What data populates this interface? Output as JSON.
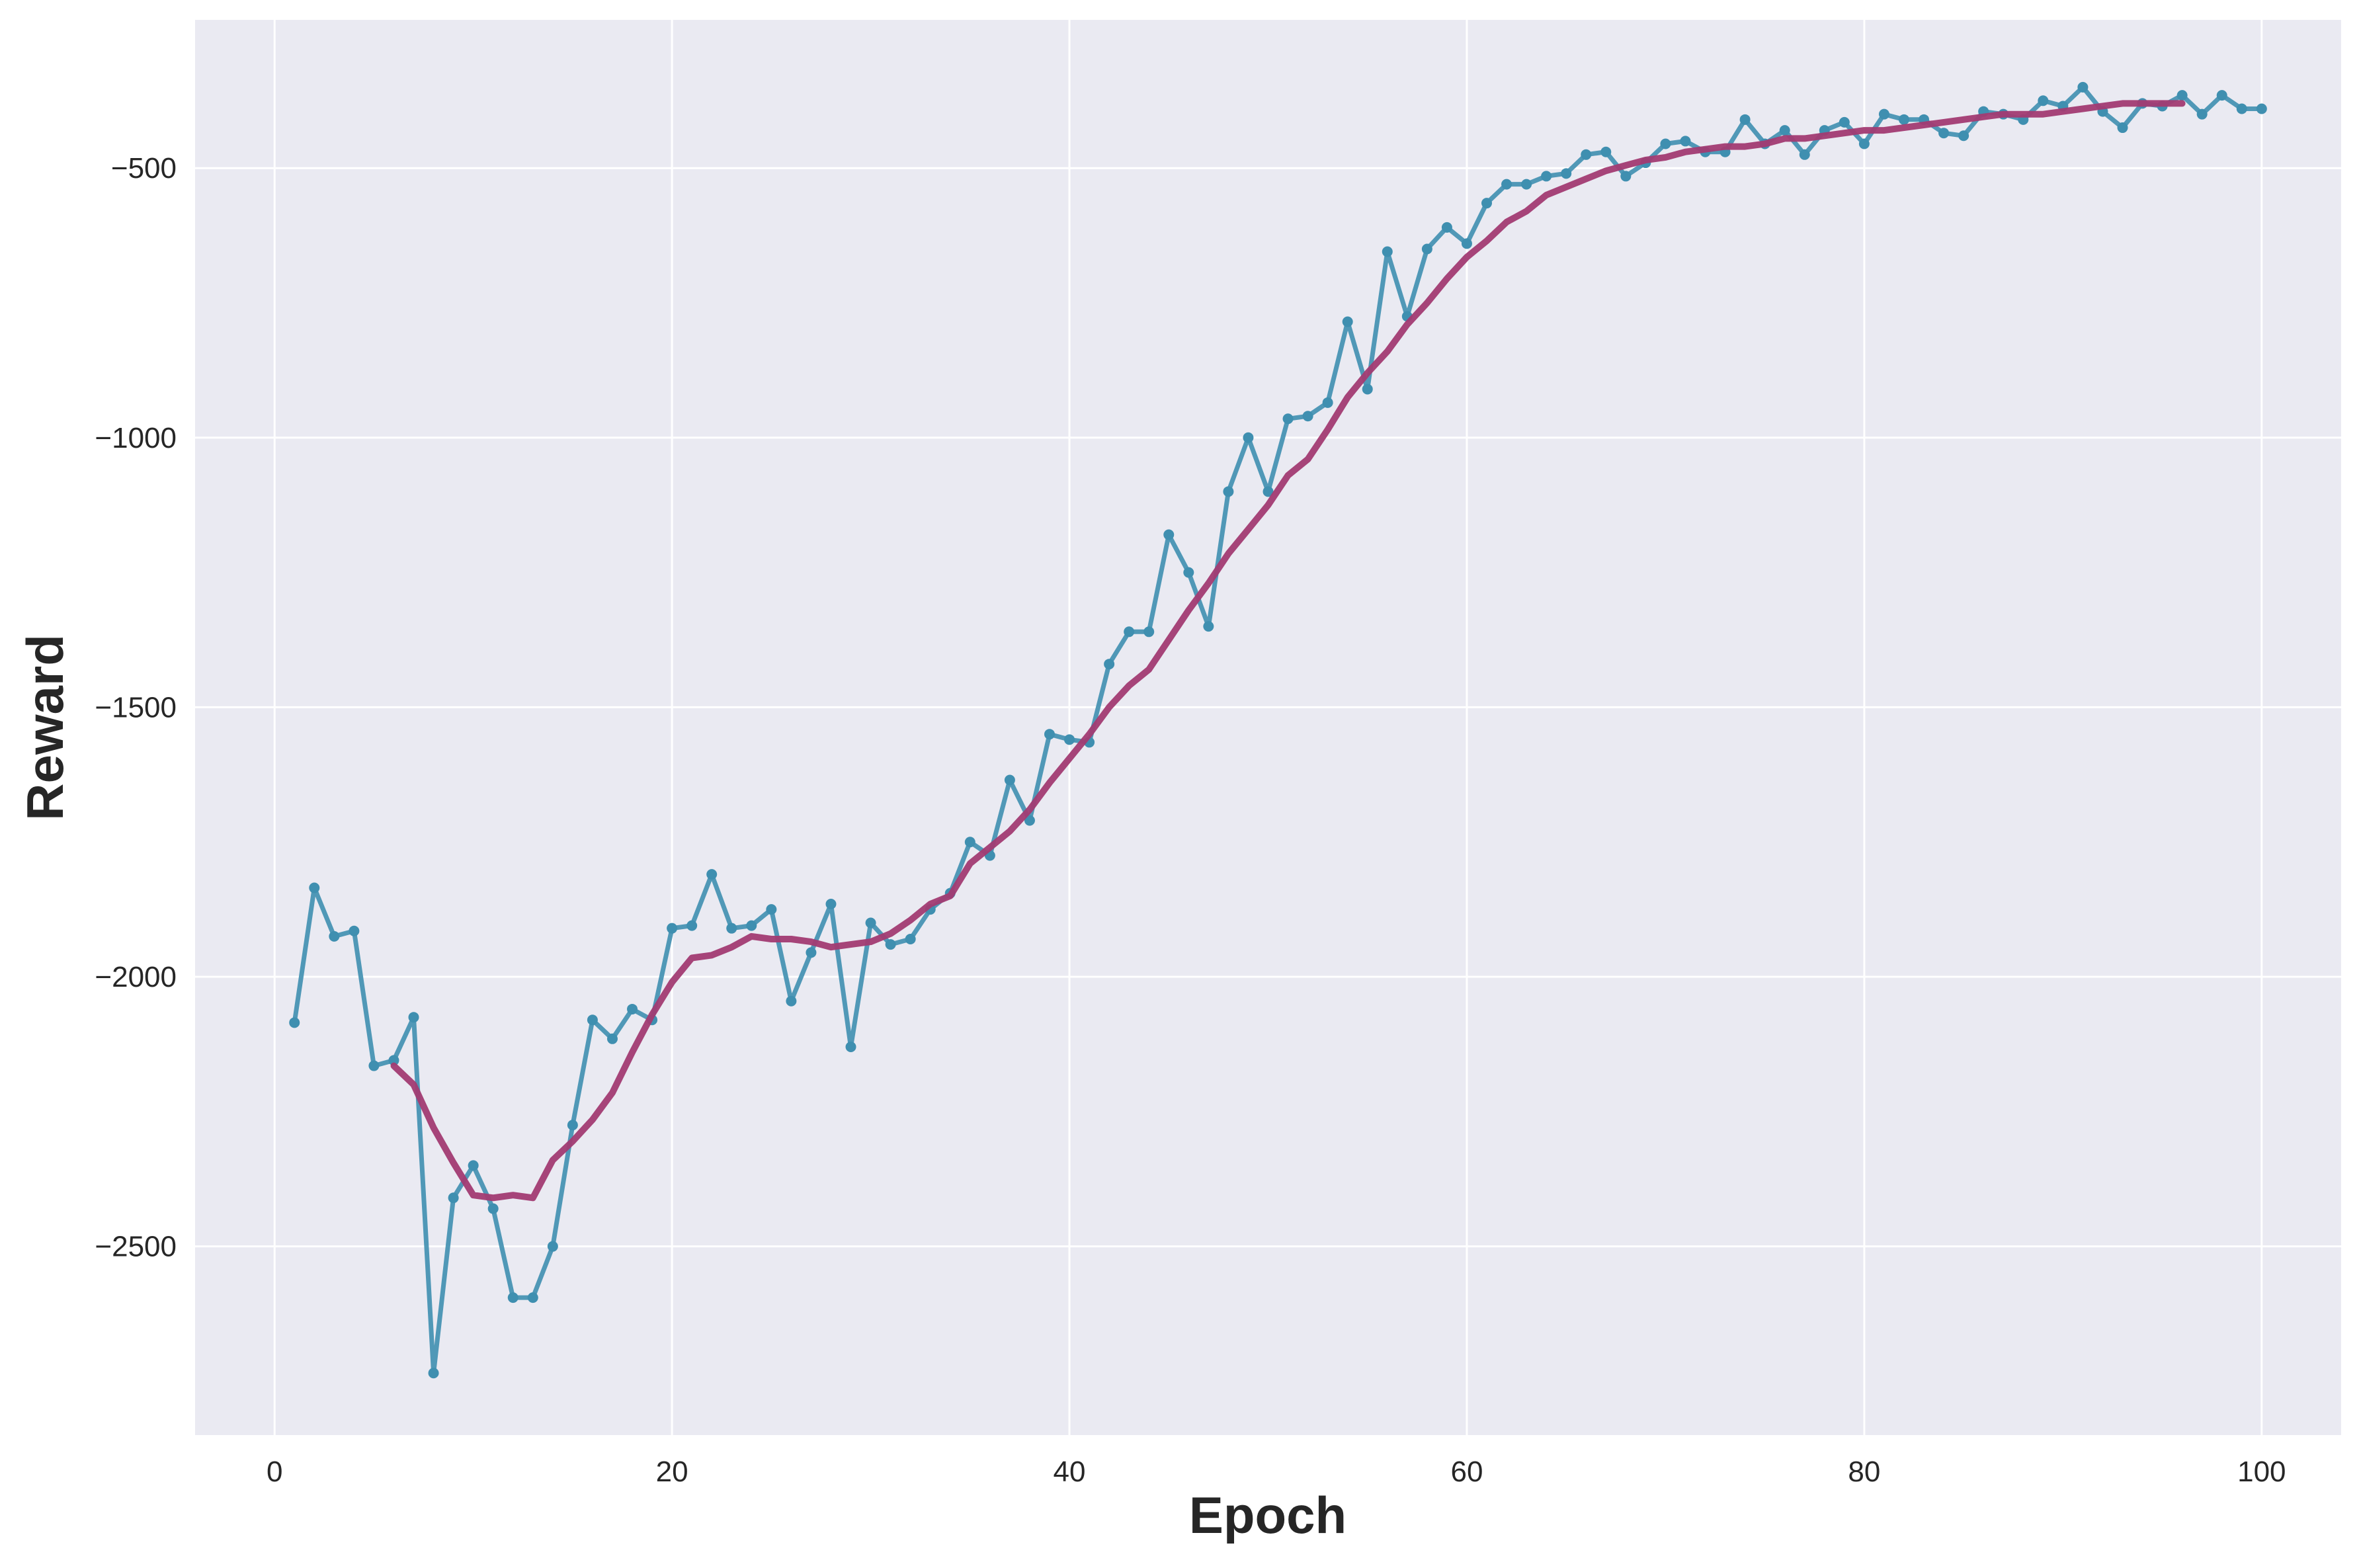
{
  "chart_data": {
    "type": "line",
    "title": "",
    "xlabel": "Epoch",
    "ylabel": "Reward",
    "xlim": [
      -4,
      104
    ],
    "ylim": [
      -2850,
      -225
    ],
    "xticks": [
      0,
      20,
      40,
      60,
      80,
      100
    ],
    "yticks": [
      -2500,
      -2000,
      -1500,
      -1000,
      -500
    ],
    "xtick_labels": [
      "0",
      "20",
      "40",
      "60",
      "80",
      "100"
    ],
    "ytick_labels": [
      "−2500",
      "−2000",
      "−1500",
      "−1000",
      "−500"
    ],
    "grid": true,
    "legend": "none",
    "colors": {
      "background": "#eaeaf2",
      "grid": "#ffffff",
      "raw": "#3f8fb0",
      "smoothed": "#a23b72"
    },
    "series": [
      {
        "x": [
          1,
          2,
          3,
          4,
          5,
          6,
          7,
          8,
          9,
          10,
          11,
          12,
          13,
          14,
          15,
          16,
          17,
          18,
          19,
          20,
          21,
          22,
          23,
          24,
          25,
          26,
          27,
          28,
          29,
          30,
          31,
          32,
          33,
          34,
          35,
          36,
          37,
          38,
          39,
          40,
          41,
          42,
          43,
          44,
          45,
          46,
          47,
          48,
          49,
          50,
          51,
          52,
          53,
          54,
          55,
          56,
          57,
          58,
          59,
          60,
          61,
          62,
          63,
          64,
          65,
          66,
          67,
          68,
          69,
          70,
          71,
          72,
          73,
          74,
          75,
          76,
          77,
          78,
          79,
          80,
          81,
          82,
          83,
          84,
          85,
          86,
          87,
          88,
          89,
          90,
          91,
          92,
          93,
          94,
          95,
          96,
          97,
          98,
          99,
          100
        ],
        "values": [
          -2085,
          -1835,
          -1925,
          -1915,
          -2165,
          -2155,
          -2075,
          -2735,
          -2410,
          -2350,
          -2430,
          -2595,
          -2595,
          -2500,
          -2275,
          -2080,
          -2115,
          -2060,
          -2080,
          -1910,
          -1905,
          -1810,
          -1910,
          -1905,
          -1875,
          -2045,
          -1955,
          -1865,
          -2130,
          -1900,
          -1940,
          -1930,
          -1875,
          -1845,
          -1750,
          -1775,
          -1635,
          -1710,
          -1550,
          -1560,
          -1565,
          -1420,
          -1360,
          -1360,
          -1180,
          -1250,
          -1350,
          -1100,
          -1000,
          -1100,
          -965,
          -960,
          -935,
          -785,
          -910,
          -655,
          -775,
          -650,
          -610,
          -640,
          -565,
          -530,
          -530,
          -515,
          -510,
          -475,
          -470,
          -515,
          -490,
          -455,
          -450,
          -470,
          -470,
          -410,
          -455,
          -430,
          -475,
          -430,
          -415,
          -455,
          -400,
          -410,
          -410,
          -435,
          -440,
          -395,
          -400,
          -410,
          -375,
          -385,
          -350,
          -395,
          -425,
          -380,
          -385,
          -365,
          -400,
          -365,
          -390,
          -390
        ]
      },
      {
        "x": [
          6,
          7,
          8,
          9,
          10,
          11,
          12,
          13,
          14,
          15,
          16,
          17,
          18,
          19,
          20,
          21,
          22,
          23,
          24,
          25,
          26,
          27,
          28,
          29,
          30,
          31,
          32,
          33,
          34,
          35,
          36,
          37,
          38,
          39,
          40,
          41,
          42,
          43,
          44,
          45,
          46,
          47,
          48,
          49,
          50,
          51,
          52,
          53,
          54,
          55,
          56,
          57,
          58,
          59,
          60,
          61,
          62,
          63,
          64,
          65,
          66,
          67,
          68,
          69,
          70,
          71,
          72,
          73,
          74,
          75,
          76,
          77,
          78,
          79,
          80,
          81,
          82,
          83,
          84,
          85,
          86,
          87,
          88,
          89,
          90,
          91,
          92,
          93,
          94,
          95,
          96
        ],
        "values": [
          -2165,
          -2200,
          -2280,
          -2345,
          -2405,
          -2410,
          -2405,
          -2410,
          -2340,
          -2305,
          -2265,
          -2215,
          -2140,
          -2070,
          -2010,
          -1965,
          -1960,
          -1945,
          -1925,
          -1930,
          -1930,
          -1935,
          -1945,
          -1940,
          -1935,
          -1920,
          -1895,
          -1865,
          -1850,
          -1790,
          -1760,
          -1730,
          -1690,
          -1640,
          -1595,
          -1550,
          -1500,
          -1460,
          -1430,
          -1375,
          -1320,
          -1270,
          -1215,
          -1170,
          -1125,
          -1070,
          -1040,
          -985,
          -925,
          -880,
          -840,
          -790,
          -750,
          -705,
          -665,
          -635,
          -600,
          -580,
          -550,
          -535,
          -520,
          -505,
          -495,
          -485,
          -480,
          -470,
          -465,
          -460,
          -460,
          -455,
          -445,
          -445,
          -440,
          -435,
          -430,
          -430,
          -425,
          -420,
          -415,
          -410,
          -405,
          -400,
          -400,
          -400,
          -395,
          -390,
          -385,
          -380,
          -380,
          -380,
          -380
        ]
      }
    ]
  }
}
